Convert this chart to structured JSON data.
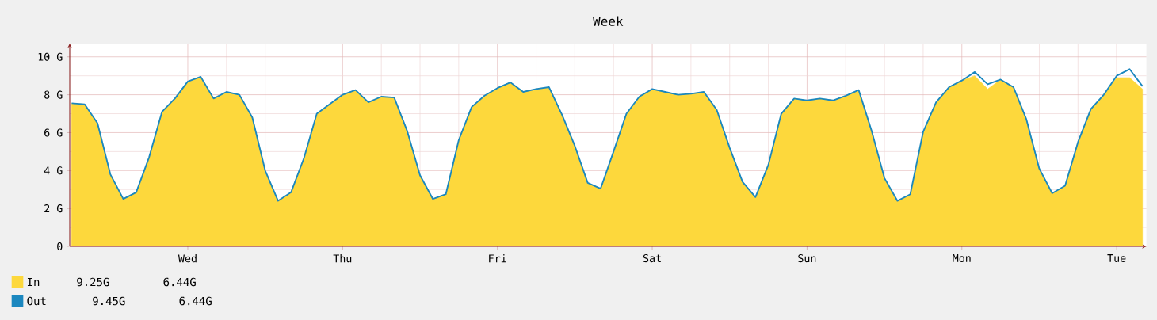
{
  "chart_data": {
    "type": "area",
    "title": "Week",
    "categories": [
      null,
      null,
      null,
      null,
      null,
      null,
      null,
      null,
      null,
      "Wed",
      null,
      null,
      null,
      null,
      null,
      null,
      null,
      null,
      null,
      null,
      null,
      "Thu",
      null,
      null,
      null,
      null,
      null,
      null,
      null,
      null,
      null,
      null,
      null,
      "Fri",
      null,
      null,
      null,
      null,
      null,
      null,
      null,
      null,
      null,
      null,
      null,
      "Sat",
      null,
      null,
      null,
      null,
      null,
      null,
      null,
      null,
      null,
      null,
      null,
      "Sun",
      null,
      null,
      null,
      null,
      null,
      null,
      null,
      null,
      null,
      null,
      null,
      "Mon",
      null,
      null,
      null,
      null,
      null,
      null,
      null,
      null,
      null,
      null,
      null,
      "Tue",
      null,
      null
    ],
    "series": [
      {
        "name": "In",
        "color": "#fdd83c",
        "values": [
          7.55,
          7.5,
          6.5,
          3.8,
          2.5,
          2.85,
          4.7,
          7.1,
          7.8,
          8.7,
          8.95,
          7.8,
          8.15,
          8.0,
          6.8,
          4.0,
          2.4,
          2.85,
          4.65,
          7.0,
          7.5,
          8.0,
          8.25,
          7.6,
          7.9,
          7.85,
          6.1,
          3.75,
          2.5,
          2.75,
          5.6,
          7.35,
          7.95,
          8.35,
          8.65,
          8.15,
          8.3,
          8.4,
          6.95,
          5.3,
          3.35,
          3.05,
          5.0,
          7.0,
          7.9,
          8.3,
          8.15,
          8.0,
          8.05,
          8.15,
          7.2,
          5.2,
          3.4,
          2.6,
          4.3,
          7.0,
          7.8,
          7.7,
          7.8,
          7.7,
          7.95,
          8.25,
          6.1,
          3.6,
          2.4,
          2.75,
          6.05,
          7.6,
          8.4,
          8.75,
          9.0,
          8.3,
          8.8,
          8.4,
          6.7,
          4.1,
          2.8,
          3.2,
          5.5,
          7.25,
          8.0,
          8.9,
          8.9,
          8.3
        ]
      },
      {
        "name": "Out",
        "type": "line",
        "color": "#1b87bf",
        "values": [
          7.55,
          7.5,
          6.5,
          3.8,
          2.5,
          2.85,
          4.7,
          7.1,
          7.8,
          8.7,
          8.95,
          7.8,
          8.15,
          8.0,
          6.8,
          4.0,
          2.4,
          2.85,
          4.65,
          7.0,
          7.5,
          8.0,
          8.25,
          7.6,
          7.9,
          7.85,
          6.1,
          3.75,
          2.5,
          2.75,
          5.6,
          7.35,
          7.95,
          8.35,
          8.65,
          8.15,
          8.3,
          8.4,
          6.95,
          5.3,
          3.35,
          3.05,
          5.0,
          7.0,
          7.9,
          8.3,
          8.15,
          8.0,
          8.05,
          8.15,
          7.2,
          5.2,
          3.4,
          2.6,
          4.3,
          7.0,
          7.8,
          7.7,
          7.8,
          7.7,
          7.95,
          8.25,
          6.1,
          3.6,
          2.4,
          2.75,
          6.05,
          7.6,
          8.4,
          8.75,
          9.2,
          8.55,
          8.8,
          8.4,
          6.7,
          4.1,
          2.8,
          3.2,
          5.5,
          7.25,
          8.0,
          9.0,
          9.35,
          8.45
        ]
      }
    ],
    "ylim": [
      0,
      10.7
    ],
    "yticks": [
      0,
      {
        "value": 2,
        "label": "2 G"
      },
      {
        "value": 4,
        "label": "4 G"
      },
      {
        "value": 6,
        "label": "6 G"
      },
      {
        "value": 8,
        "label": "8 G"
      },
      {
        "value": 10,
        "label": "10 G"
      }
    ],
    "grid": true,
    "legend": "bottom left",
    "annotations": [
      "9.25G",
      "6.44G",
      "9.45G",
      "6.44G"
    ]
  }
}
